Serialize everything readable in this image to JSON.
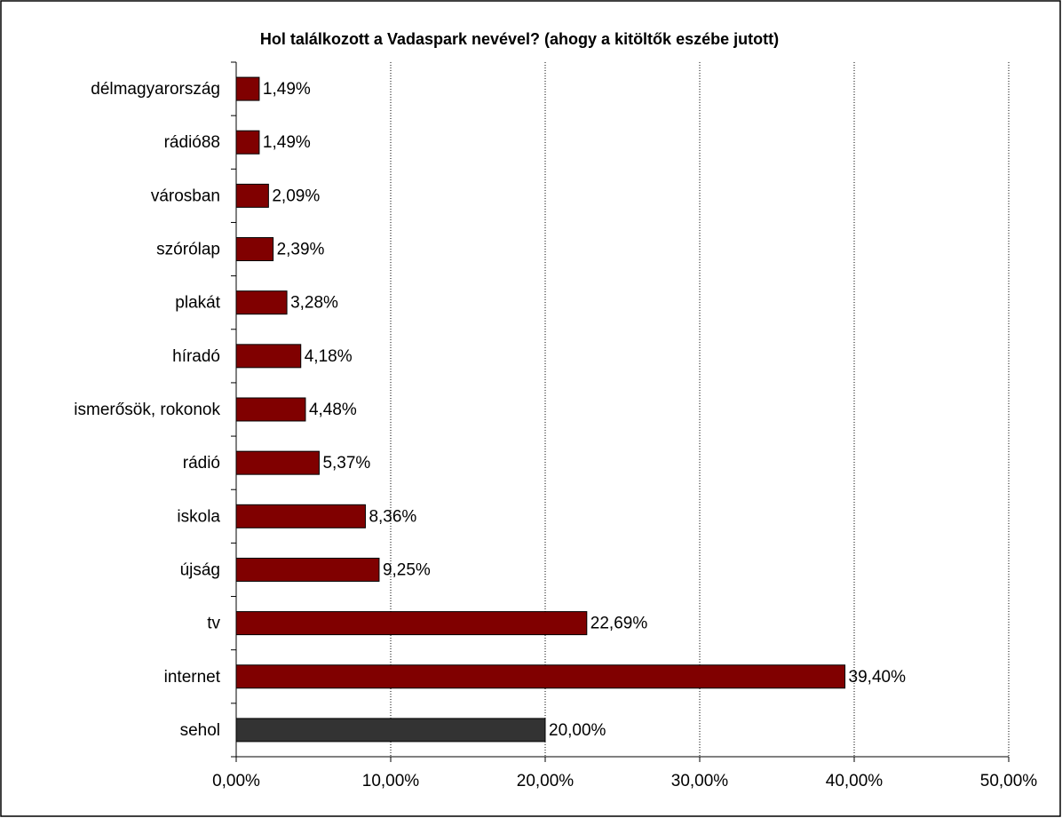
{
  "chart_data": {
    "type": "barh",
    "title": "Hol találkozott a Vadaspark nevével? (ahogy a kitöltők eszébe jutott)",
    "categories": [
      "délmagyarország",
      "rádió88",
      "városban",
      "szórólap",
      "plakát",
      "híradó",
      "ismerősök, rokonok",
      "rádió",
      "iskola",
      "újság",
      "tv",
      "internet",
      "sehol"
    ],
    "values": [
      1.49,
      1.49,
      2.09,
      2.39,
      3.28,
      4.18,
      4.48,
      5.37,
      8.36,
      9.25,
      22.69,
      39.4,
      20.0
    ],
    "value_labels": [
      "1,49%",
      "1,49%",
      "2,09%",
      "2,39%",
      "3,28%",
      "4,18%",
      "4,48%",
      "5,37%",
      "8,36%",
      "9,25%",
      "22,69%",
      "39,40%",
      "20,00%"
    ],
    "colors": [
      "#800000",
      "#800000",
      "#800000",
      "#800000",
      "#800000",
      "#800000",
      "#800000",
      "#800000",
      "#800000",
      "#800000",
      "#800000",
      "#800000",
      "#333333"
    ],
    "xlim": [
      0,
      50
    ],
    "xticks": [
      {
        "value": 0,
        "label": "0,00%"
      },
      {
        "value": 10,
        "label": "10,00%"
      },
      {
        "value": 20,
        "label": "20,00%"
      },
      {
        "value": 30,
        "label": "30,00%"
      },
      {
        "value": 40,
        "label": "40,00%"
      },
      {
        "value": 50,
        "label": "50,00%"
      }
    ],
    "grid": true
  }
}
